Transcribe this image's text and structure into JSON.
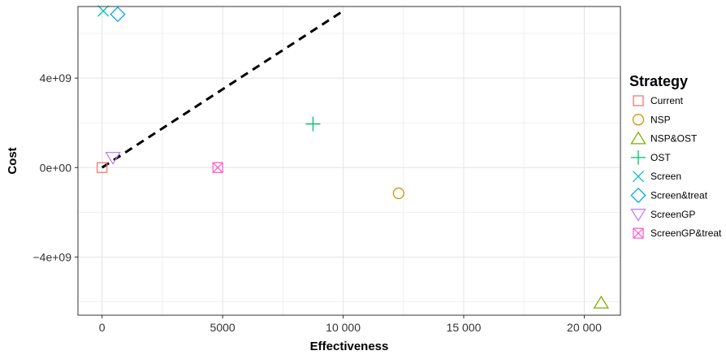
{
  "chart_data": {
    "type": "scatter",
    "xlabel": "Effectiveness",
    "ylabel": "Cost",
    "xlim": [
      -1000,
      21500
    ],
    "ylim": [
      -6600000000,
      7200000000
    ],
    "x_ticks": [
      0,
      5000,
      10000,
      15000,
      20000
    ],
    "x_tick_labels": [
      "0",
      "5000",
      "10 000",
      "15 000",
      "20 000"
    ],
    "y_ticks": [
      -4000000000,
      0,
      4000000000
    ],
    "y_tick_labels": [
      "−4e+09",
      "0e+00",
      "4e+09"
    ],
    "grid": true,
    "legend_title": "Strategy",
    "legend_placement": "right",
    "series": [
      {
        "name": "Current",
        "shape": "square",
        "color": "#F8766D",
        "x": 0,
        "y": 0
      },
      {
        "name": "NSP",
        "shape": "circle",
        "color": "#CD9600",
        "x": 12300,
        "y": -1150000000
      },
      {
        "name": "NSP&OST",
        "shape": "triangle-up",
        "color": "#7CAE00",
        "x": 20700,
        "y": -6050000000
      },
      {
        "name": "OST",
        "shape": "plus",
        "color": "#00BE67",
        "x": 8750,
        "y": 1950000000
      },
      {
        "name": "Screen",
        "shape": "cross",
        "color": "#00BFC4",
        "x": 50,
        "y": 7000000000
      },
      {
        "name": "Screen&treat",
        "shape": "diamond",
        "color": "#00A9FF",
        "x": 650,
        "y": 6850000000
      },
      {
        "name": "ScreenGP",
        "shape": "triangle-down",
        "color": "#C77CFF",
        "x": 450,
        "y": 450000000
      },
      {
        "name": "ScreenGP&treat",
        "shape": "square-cross",
        "color": "#FF61CC",
        "x": 4800,
        "y": 0
      }
    ],
    "reference_line": {
      "style": "dashed",
      "color": "#000000",
      "x": [
        0,
        10000
      ],
      "y": [
        0,
        7000000000
      ]
    }
  }
}
